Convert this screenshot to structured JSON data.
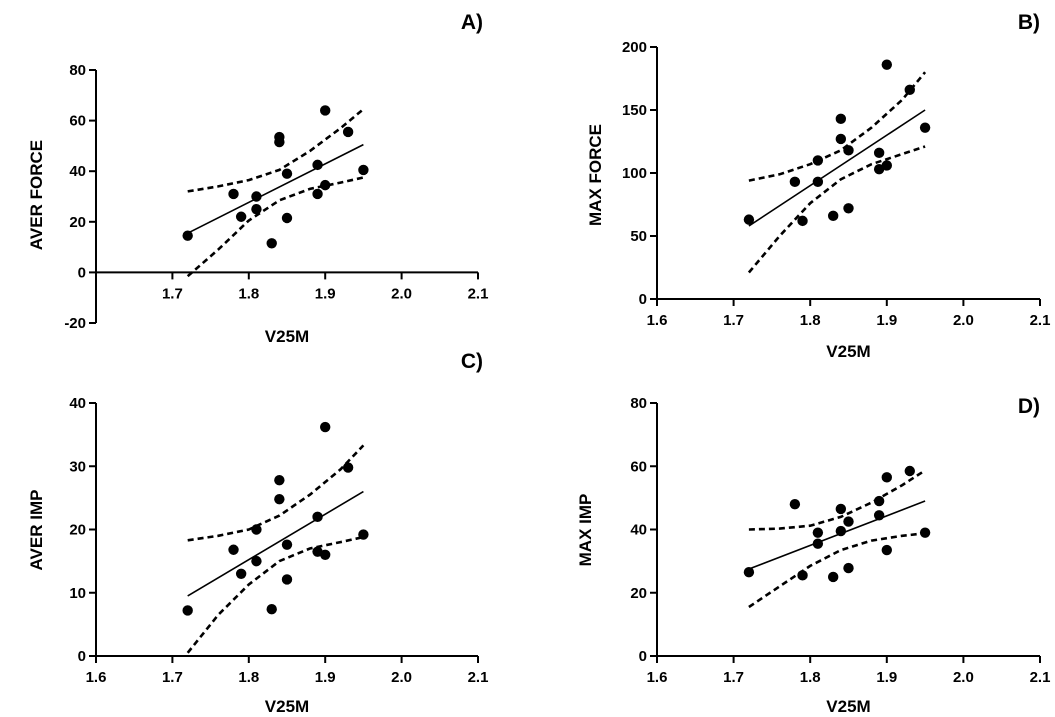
{
  "chart_data": [
    {
      "type": "scatter",
      "panel_label": "A)",
      "xlabel": "V25M",
      "ylabel": "AVER FORCE",
      "xlim": [
        1.6,
        2.1
      ],
      "ylim": [
        -20,
        80
      ],
      "x_ticks": [
        "1.7",
        "1.8",
        "1.9",
        "2.0",
        "2.1"
      ],
      "y_ticks": [
        "-20",
        "0",
        "20",
        "40",
        "60",
        "80"
      ],
      "x_axis_at_y": 0,
      "grid": false,
      "points": [
        [
          1.72,
          14.5
        ],
        [
          1.78,
          31
        ],
        [
          1.79,
          22
        ],
        [
          1.81,
          25
        ],
        [
          1.81,
          30
        ],
        [
          1.83,
          11.5
        ],
        [
          1.84,
          51.5
        ],
        [
          1.84,
          53.5
        ],
        [
          1.85,
          39
        ],
        [
          1.85,
          21.5
        ],
        [
          1.89,
          31
        ],
        [
          1.89,
          42.5
        ],
        [
          1.9,
          64
        ],
        [
          1.9,
          34.5
        ],
        [
          1.93,
          55.5
        ],
        [
          1.95,
          40.5
        ]
      ],
      "fit_line": [
        [
          1.72,
          15.5
        ],
        [
          1.95,
          50.5
        ]
      ],
      "ci_upper": [
        [
          1.72,
          32
        ],
        [
          1.76,
          34
        ],
        [
          1.8,
          36.5
        ],
        [
          1.84,
          40.5
        ],
        [
          1.88,
          48
        ],
        [
          1.92,
          57
        ],
        [
          1.95,
          64.5
        ]
      ],
      "ci_lower": [
        [
          1.72,
          -1.5
        ],
        [
          1.76,
          9
        ],
        [
          1.8,
          20.5
        ],
        [
          1.84,
          28.5
        ],
        [
          1.88,
          33
        ],
        [
          1.92,
          35.5
        ],
        [
          1.95,
          37.5
        ]
      ]
    },
    {
      "type": "scatter",
      "panel_label": "B)",
      "xlabel": "V25M",
      "ylabel": "MAX FORCE",
      "xlim": [
        1.6,
        2.1
      ],
      "ylim": [
        0,
        200
      ],
      "x_ticks": [
        "1.6",
        "1.7",
        "1.8",
        "1.9",
        "2.0",
        "2.1"
      ],
      "y_ticks": [
        "0",
        "50",
        "100",
        "150",
        "200"
      ],
      "x_axis_at_y": 0,
      "grid": false,
      "points": [
        [
          1.72,
          63
        ],
        [
          1.78,
          93
        ],
        [
          1.79,
          62
        ],
        [
          1.81,
          110
        ],
        [
          1.81,
          93
        ],
        [
          1.83,
          66
        ],
        [
          1.84,
          143
        ],
        [
          1.84,
          127
        ],
        [
          1.85,
          118
        ],
        [
          1.85,
          72
        ],
        [
          1.89,
          116
        ],
        [
          1.89,
          103
        ],
        [
          1.9,
          186
        ],
        [
          1.9,
          106
        ],
        [
          1.93,
          166
        ],
        [
          1.95,
          136
        ]
      ],
      "fit_line": [
        [
          1.72,
          58
        ],
        [
          1.95,
          150
        ]
      ],
      "ci_upper": [
        [
          1.72,
          94
        ],
        [
          1.76,
          99
        ],
        [
          1.8,
          107
        ],
        [
          1.84,
          118
        ],
        [
          1.88,
          136
        ],
        [
          1.92,
          158
        ],
        [
          1.95,
          180
        ]
      ],
      "ci_lower": [
        [
          1.72,
          21
        ],
        [
          1.76,
          50
        ],
        [
          1.8,
          76
        ],
        [
          1.84,
          95
        ],
        [
          1.88,
          107
        ],
        [
          1.92,
          115
        ],
        [
          1.95,
          121
        ]
      ]
    },
    {
      "type": "scatter",
      "panel_label": "C)",
      "xlabel": "V25M",
      "ylabel": "AVER IMP",
      "xlim": [
        1.6,
        2.1
      ],
      "ylim": [
        0,
        40
      ],
      "x_ticks": [
        "1.6",
        "1.7",
        "1.8",
        "1.9",
        "2.0",
        "2.1"
      ],
      "y_ticks": [
        "0",
        "10",
        "20",
        "30",
        "40"
      ],
      "x_axis_at_y": 0,
      "grid": false,
      "points": [
        [
          1.72,
          7.2
        ],
        [
          1.78,
          16.8
        ],
        [
          1.79,
          13
        ],
        [
          1.81,
          20
        ],
        [
          1.81,
          15
        ],
        [
          1.83,
          7.4
        ],
        [
          1.84,
          27.8
        ],
        [
          1.84,
          24.8
        ],
        [
          1.85,
          17.6
        ],
        [
          1.85,
          12.1
        ],
        [
          1.89,
          22
        ],
        [
          1.89,
          16.5
        ],
        [
          1.9,
          36.2
        ],
        [
          1.9,
          16
        ],
        [
          1.93,
          29.8
        ],
        [
          1.95,
          19.2
        ]
      ],
      "fit_line": [
        [
          1.72,
          9.5
        ],
        [
          1.95,
          26
        ]
      ],
      "ci_upper": [
        [
          1.72,
          18.3
        ],
        [
          1.76,
          19
        ],
        [
          1.8,
          20
        ],
        [
          1.84,
          22.2
        ],
        [
          1.88,
          25.5
        ],
        [
          1.92,
          29.5
        ],
        [
          1.95,
          33.3
        ]
      ],
      "ci_lower": [
        [
          1.72,
          0.5
        ],
        [
          1.76,
          6.5
        ],
        [
          1.8,
          11.3
        ],
        [
          1.84,
          15
        ],
        [
          1.88,
          17
        ],
        [
          1.92,
          18
        ],
        [
          1.95,
          18.8
        ]
      ]
    },
    {
      "type": "scatter",
      "panel_label": "D)",
      "xlabel": "V25M",
      "ylabel": "MAX IMP",
      "xlim": [
        1.6,
        2.1
      ],
      "ylim": [
        0,
        80
      ],
      "x_ticks": [
        "1.6",
        "1.7",
        "1.8",
        "1.9",
        "2.0",
        "2.1"
      ],
      "y_ticks": [
        "0",
        "20",
        "40",
        "60",
        "80"
      ],
      "x_axis_at_y": 0,
      "grid": false,
      "points": [
        [
          1.72,
          26.5
        ],
        [
          1.78,
          48
        ],
        [
          1.79,
          25.5
        ],
        [
          1.81,
          39
        ],
        [
          1.81,
          35.5
        ],
        [
          1.83,
          25
        ],
        [
          1.84,
          46.5
        ],
        [
          1.84,
          39.5
        ],
        [
          1.85,
          42.5
        ],
        [
          1.85,
          27.8
        ],
        [
          1.89,
          49
        ],
        [
          1.89,
          44.5
        ],
        [
          1.9,
          56.5
        ],
        [
          1.9,
          33.5
        ],
        [
          1.93,
          58.5
        ],
        [
          1.95,
          39
        ]
      ],
      "fit_line": [
        [
          1.72,
          27.5
        ],
        [
          1.95,
          49
        ]
      ],
      "ci_upper": [
        [
          1.72,
          40
        ],
        [
          1.76,
          40.3
        ],
        [
          1.8,
          41.2
        ],
        [
          1.84,
          44
        ],
        [
          1.88,
          48.5
        ],
        [
          1.92,
          54
        ],
        [
          1.95,
          58.7
        ]
      ],
      "ci_lower": [
        [
          1.72,
          15.5
        ],
        [
          1.76,
          22
        ],
        [
          1.8,
          28.5
        ],
        [
          1.84,
          33.5
        ],
        [
          1.88,
          36.5
        ],
        [
          1.92,
          38
        ],
        [
          1.95,
          38.8
        ]
      ]
    }
  ]
}
